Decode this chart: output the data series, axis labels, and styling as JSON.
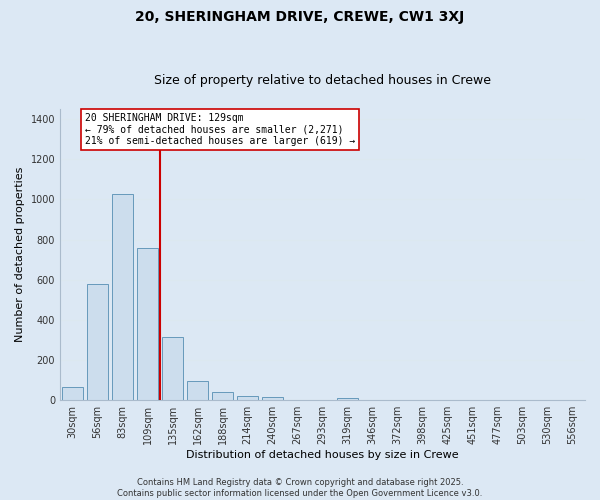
{
  "title1": "20, SHERINGHAM DRIVE, CREWE, CW1 3XJ",
  "title2": "Size of property relative to detached houses in Crewe",
  "xlabel": "Distribution of detached houses by size in Crewe",
  "ylabel": "Number of detached properties",
  "bar_labels": [
    "30sqm",
    "56sqm",
    "83sqm",
    "109sqm",
    "135sqm",
    "162sqm",
    "188sqm",
    "214sqm",
    "240sqm",
    "267sqm",
    "293sqm",
    "319sqm",
    "346sqm",
    "372sqm",
    "398sqm",
    "425sqm",
    "451sqm",
    "477sqm",
    "503sqm",
    "530sqm",
    "556sqm"
  ],
  "bar_values": [
    65,
    580,
    1025,
    760,
    315,
    95,
    43,
    22,
    14,
    0,
    0,
    10,
    0,
    0,
    0,
    0,
    0,
    0,
    0,
    0,
    0
  ],
  "bar_color": "#ccdded",
  "bar_edge_color": "#6699bb",
  "vline_color": "#cc0000",
  "annotation_text": "20 SHERINGHAM DRIVE: 129sqm\n← 79% of detached houses are smaller (2,271)\n21% of semi-detached houses are larger (619) →",
  "annotation_box_color": "white",
  "annotation_box_edge": "#cc0000",
  "ylim": [
    0,
    1450
  ],
  "yticks": [
    0,
    200,
    400,
    600,
    800,
    1000,
    1200,
    1400
  ],
  "grid_color": "#dce8f0",
  "background_color": "#dce8f4",
  "plot_bg_color": "#dce8f4",
  "footer_text": "Contains HM Land Registry data © Crown copyright and database right 2025.\nContains public sector information licensed under the Open Government Licence v3.0.",
  "title1_fontsize": 10,
  "title2_fontsize": 9,
  "annot_fontsize": 7,
  "footer_fontsize": 6,
  "tick_fontsize": 7,
  "axis_label_fontsize": 8
}
